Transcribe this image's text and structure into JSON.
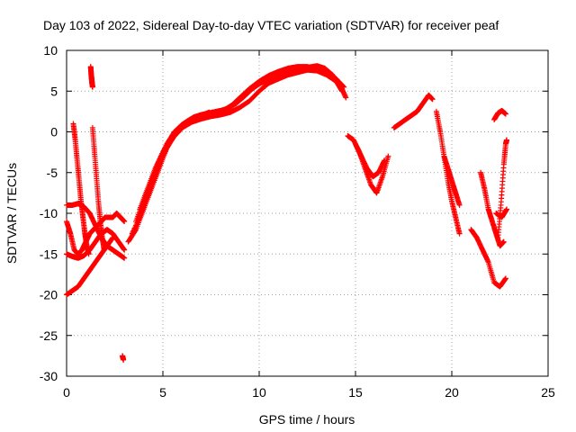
{
  "chart_data": {
    "type": "scatter",
    "title": "Day 103 of 2022, Sidereal Day-to-day VTEC variation (SDTVAR) for receiver peaf",
    "xlabel": "GPS time / hours",
    "ylabel": "SDTVAR / TECUs",
    "xlim": [
      0,
      25
    ],
    "ylim": [
      -30,
      10
    ],
    "x_ticks": [
      0,
      5,
      10,
      15,
      20,
      25
    ],
    "x_tick_labels": [
      "0",
      "5",
      "10",
      "15",
      "20",
      "25"
    ],
    "y_ticks": [
      10,
      5,
      0,
      -5,
      -10,
      -15,
      -20,
      -25,
      -30
    ],
    "y_tick_labels": [
      "10",
      "5",
      "0",
      "-5",
      "-10",
      "-15",
      "-20",
      "-25",
      "-30"
    ],
    "grid": true,
    "marker": "+",
    "color": "#ff0000",
    "series": [
      {
        "name": "main-arc-a",
        "x": [
          3.2,
          3.6,
          4.0,
          4.4,
          4.8,
          5.2,
          5.6,
          6.0,
          6.5,
          7.0,
          7.5,
          8.0,
          8.5,
          9.0,
          9.5,
          10.0,
          10.5,
          11.0,
          11.5,
          12.0,
          12.5,
          13.0,
          13.5,
          14.0,
          14.3
        ],
        "y": [
          -13.5,
          -12,
          -9.5,
          -7,
          -4.5,
          -2,
          -0.5,
          0.5,
          1.2,
          1.6,
          1.9,
          2.1,
          2.4,
          3.0,
          3.8,
          5.0,
          6.0,
          6.5,
          7.0,
          7.3,
          7.6,
          7.5,
          7.0,
          6.2,
          5.0
        ]
      },
      {
        "name": "main-arc-b",
        "x": [
          3.4,
          3.8,
          4.2,
          4.6,
          5.0,
          5.4,
          5.8,
          6.2,
          6.6,
          7.0,
          7.4,
          7.8,
          8.2,
          8.6,
          9.0,
          9.5,
          10.0,
          10.5,
          11.0,
          11.5,
          12.0,
          12.5,
          13.0,
          13.5,
          14.0,
          14.4
        ],
        "y": [
          -12.5,
          -10.5,
          -8,
          -5.5,
          -3,
          -1,
          0.3,
          1.2,
          1.8,
          2.1,
          2.3,
          2.5,
          2.7,
          3.3,
          4.2,
          5.3,
          6.2,
          6.9,
          7.4,
          7.8,
          8.0,
          8.0,
          7.7,
          7.2,
          6.5,
          5.5
        ]
      },
      {
        "name": "main-arc-c",
        "x": [
          3.6,
          4.0,
          4.4,
          4.8,
          5.2,
          5.6,
          6.0,
          6.4,
          6.8,
          7.2,
          7.6,
          8.0,
          8.4,
          8.8,
          9.2,
          9.6,
          10.0,
          10.5,
          11.0,
          11.5,
          12.0,
          12.5,
          13.0,
          13.4,
          13.8,
          14.2,
          14.5
        ],
        "y": [
          -11,
          -8.5,
          -6,
          -3.5,
          -1.5,
          0,
          0.9,
          1.5,
          1.9,
          2.2,
          2.4,
          2.6,
          2.9,
          3.5,
          4.3,
          5.2,
          5.9,
          6.4,
          6.8,
          7.2,
          7.6,
          7.9,
          8.1,
          7.8,
          7.0,
          5.8,
          4.2
        ]
      },
      {
        "name": "main-arc-d",
        "x": [
          3.8,
          4.2,
          4.6,
          5.0,
          5.4,
          5.8,
          6.2,
          6.6,
          7.0,
          7.4
        ],
        "y": [
          -9.5,
          -7,
          -4.5,
          -2.5,
          -1,
          0,
          1.0,
          1.6,
          2.0,
          2.4
        ]
      },
      {
        "name": "left-loop-a",
        "x": [
          0.0,
          0.2,
          0.4,
          0.6,
          0.8,
          1.0,
          1.2,
          1.4,
          1.6,
          1.8,
          2.0,
          2.2,
          2.4,
          2.6,
          2.8,
          3.0
        ],
        "y": [
          -11,
          -12.5,
          -14.5,
          -15,
          -14.5,
          -13.5,
          -12.5,
          -12,
          -11.5,
          -11,
          -10.5,
          -10.5,
          -10.5,
          -10,
          -10.5,
          -11
        ]
      },
      {
        "name": "left-loop-b",
        "x": [
          0.0,
          0.3,
          0.6,
          0.9,
          1.2,
          1.5,
          1.8,
          2.1,
          2.4,
          2.7,
          3.0
        ],
        "y": [
          -9,
          -9,
          -8.8,
          -9.2,
          -10,
          -11.5,
          -13,
          -14,
          -14.5,
          -15,
          -15.5
        ]
      },
      {
        "name": "left-loop-c",
        "x": [
          0.0,
          0.3,
          0.6,
          0.9,
          1.2,
          1.5,
          1.8,
          2.1,
          2.4,
          2.7,
          3.0
        ],
        "y": [
          -15,
          -15.3,
          -15.5,
          -15.2,
          -14.5,
          -13.5,
          -12.5,
          -12,
          -12.5,
          -13.5,
          -14.5
        ]
      },
      {
        "name": "left-rise",
        "x": [
          0.0,
          0.3,
          0.6,
          0.9,
          1.2,
          1.5,
          1.8,
          2.1,
          2.4
        ],
        "y": [
          -20,
          -19.5,
          -19,
          -18,
          -17,
          -16,
          -15,
          -14,
          -13
        ]
      },
      {
        "name": "steep-streak-a",
        "x": [
          0.35,
          0.45,
          0.55,
          0.65,
          0.75,
          0.85,
          0.95,
          1.05,
          1.15
        ],
        "y": [
          1,
          -1,
          -3.5,
          -6,
          -8.5,
          -10.5,
          -12.5,
          -14,
          -15
        ]
      },
      {
        "name": "steep-streak-b",
        "x": [
          1.35,
          1.45,
          1.55,
          1.65,
          1.75,
          1.85,
          1.95
        ],
        "y": [
          0.5,
          -2.5,
          -5.5,
          -8.5,
          -11,
          -13,
          -14.5
        ]
      },
      {
        "name": "spike-top",
        "x": [
          1.25,
          1.28,
          1.3,
          1.32,
          1.35
        ],
        "y": [
          8,
          7,
          6.5,
          6,
          5.5
        ]
      },
      {
        "name": "outlier-low",
        "x": [
          2.9,
          2.95
        ],
        "y": [
          -27.5,
          -28
        ]
      },
      {
        "name": "dip-15",
        "x": [
          14.6,
          14.9,
          15.2,
          15.5,
          15.8,
          16.1,
          16.4,
          16.7
        ],
        "y": [
          -0.5,
          -1.0,
          -2.5,
          -4.5,
          -6.5,
          -7.5,
          -5.5,
          -3.0
        ]
      },
      {
        "name": "dip-15-b",
        "x": [
          15.0,
          15.3,
          15.6,
          15.9,
          16.2,
          16.5
        ],
        "y": [
          -1.5,
          -3,
          -4.5,
          -5.5,
          -5,
          -3.5
        ]
      },
      {
        "name": "arc-18",
        "x": [
          17.0,
          17.3,
          17.6,
          17.9,
          18.2,
          18.5,
          18.8,
          19.0
        ],
        "y": [
          0.5,
          1.0,
          1.5,
          2.0,
          2.5,
          3.5,
          4.5,
          4.0
        ]
      },
      {
        "name": "drop-19",
        "x": [
          19.2,
          19.4,
          19.6,
          19.8,
          20.0,
          20.2,
          20.4
        ],
        "y": [
          2.5,
          0,
          -3,
          -6,
          -8.5,
          -10.5,
          -12.5
        ]
      },
      {
        "name": "drop-19-b",
        "x": [
          19.6,
          19.8,
          20.0,
          20.2,
          20.4
        ],
        "y": [
          -3,
          -4.5,
          -6,
          -7.5,
          -9
        ]
      },
      {
        "name": "low-21",
        "x": [
          21.0,
          21.3,
          21.6,
          21.9,
          22.2,
          22.5,
          22.8
        ],
        "y": [
          -12,
          -13,
          -14.5,
          -16,
          -18.5,
          -19,
          -18
        ]
      },
      {
        "name": "rise-22",
        "x": [
          21.5,
          21.7,
          21.9,
          22.1,
          22.3,
          22.5,
          22.7
        ],
        "y": [
          -5,
          -7,
          -9.5,
          -11,
          -12.5,
          -14,
          -13.5
        ]
      },
      {
        "name": "rise-22-b",
        "x": [
          22.4,
          22.55,
          22.7,
          22.8,
          22.85
        ],
        "y": [
          -13,
          -9,
          -4,
          -1.5,
          -1
        ]
      },
      {
        "name": "top-22",
        "x": [
          22.2,
          22.4,
          22.6,
          22.8
        ],
        "y": [
          1.5,
          2.3,
          2.6,
          2.2
        ]
      },
      {
        "name": "tail-22",
        "x": [
          22.3,
          22.6,
          22.85
        ],
        "y": [
          -10,
          -10.5,
          -9.5
        ]
      }
    ]
  }
}
